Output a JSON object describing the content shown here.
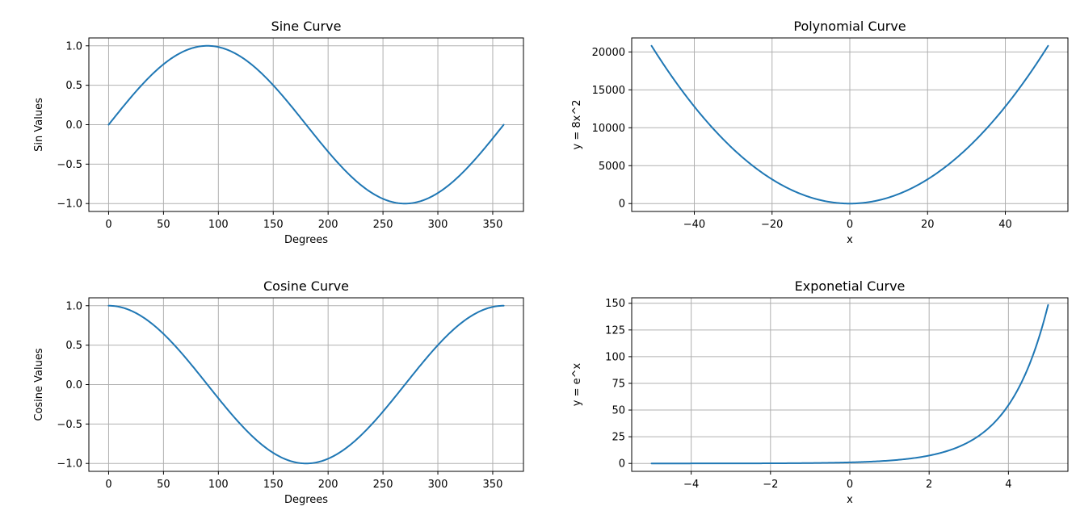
{
  "colors": {
    "line": "#1f77b4",
    "grid": "#b0b0b0"
  },
  "chart_data": [
    {
      "type": "line",
      "title": "Sine Curve",
      "xlabel": "Degrees",
      "ylabel": "Sin Values",
      "function": "sin_deg",
      "x_range": [
        0,
        360
      ],
      "xlim": [
        -18,
        378
      ],
      "ylim": [
        -1.1,
        1.1
      ],
      "xticks": [
        0,
        50,
        100,
        150,
        200,
        250,
        300,
        350
      ],
      "xtick_labels": [
        "0",
        "50",
        "100",
        "150",
        "200",
        "250",
        "300",
        "350"
      ],
      "yticks": [
        -1.0,
        -0.5,
        0.0,
        0.5,
        1.0
      ],
      "ytick_labels": [
        "−1.0",
        "−0.5",
        "0.0",
        "0.5",
        "1.0"
      ],
      "grid": true,
      "series": [
        {
          "x": [
            0,
            45,
            90,
            135,
            180,
            225,
            270,
            315,
            360
          ],
          "y": [
            0,
            0.707,
            1,
            0.707,
            0,
            -0.707,
            -1,
            -0.707,
            0
          ]
        }
      ]
    },
    {
      "type": "line",
      "title": "Polynomial Curve",
      "xlabel": "x",
      "ylabel": "y = 8x^2",
      "function": "poly_8x2",
      "x_range": [
        -51,
        51
      ],
      "xlim": [
        -56.1,
        56.1
      ],
      "ylim": [
        -1040,
        21848
      ],
      "xticks": [
        -40,
        -20,
        0,
        20,
        40
      ],
      "xtick_labels": [
        "−40",
        "−20",
        "0",
        "20",
        "40"
      ],
      "yticks": [
        0,
        5000,
        10000,
        15000,
        20000
      ],
      "ytick_labels": [
        "0",
        "5000",
        "10000",
        "15000",
        "20000"
      ],
      "grid": true,
      "series": [
        {
          "x": [
            -51,
            -40,
            -20,
            0,
            20,
            40,
            51
          ],
          "y": [
            20808,
            12800,
            3200,
            0,
            3200,
            12800,
            20808
          ]
        }
      ]
    },
    {
      "type": "line",
      "title": "Cosine Curve",
      "xlabel": "Degrees",
      "ylabel": "Cosine Values",
      "function": "cos_deg",
      "x_range": [
        0,
        360
      ],
      "xlim": [
        -18,
        378
      ],
      "ylim": [
        -1.1,
        1.1
      ],
      "xticks": [
        0,
        50,
        100,
        150,
        200,
        250,
        300,
        350
      ],
      "xtick_labels": [
        "0",
        "50",
        "100",
        "150",
        "200",
        "250",
        "300",
        "350"
      ],
      "yticks": [
        -1.0,
        -0.5,
        0.0,
        0.5,
        1.0
      ],
      "ytick_labels": [
        "−1.0",
        "−0.5",
        "0.0",
        "0.5",
        "1.0"
      ],
      "grid": true,
      "series": [
        {
          "x": [
            0,
            45,
            90,
            135,
            180,
            225,
            270,
            315,
            360
          ],
          "y": [
            1,
            0.707,
            0,
            -0.707,
            -1,
            -0.707,
            0,
            0.707,
            1
          ]
        }
      ]
    },
    {
      "type": "line",
      "title": "Exponetial Curve",
      "xlabel": "x",
      "ylabel": "y = e^x",
      "function": "exp",
      "x_range": [
        -5,
        5
      ],
      "xlim": [
        -5.5,
        5.5
      ],
      "ylim": [
        -7.4,
        155.1
      ],
      "xticks": [
        -4,
        -2,
        0,
        2,
        4
      ],
      "xtick_labels": [
        "−4",
        "−2",
        "0",
        "2",
        "4"
      ],
      "yticks": [
        0,
        25,
        50,
        75,
        100,
        125,
        150
      ],
      "ytick_labels": [
        "0",
        "25",
        "50",
        "75",
        "100",
        "125",
        "150"
      ],
      "grid": true,
      "series": [
        {
          "x": [
            -5,
            -2,
            0,
            2,
            3,
            4,
            5
          ],
          "y": [
            0.007,
            0.135,
            1,
            7.39,
            20.09,
            54.6,
            148.4
          ]
        }
      ]
    }
  ]
}
